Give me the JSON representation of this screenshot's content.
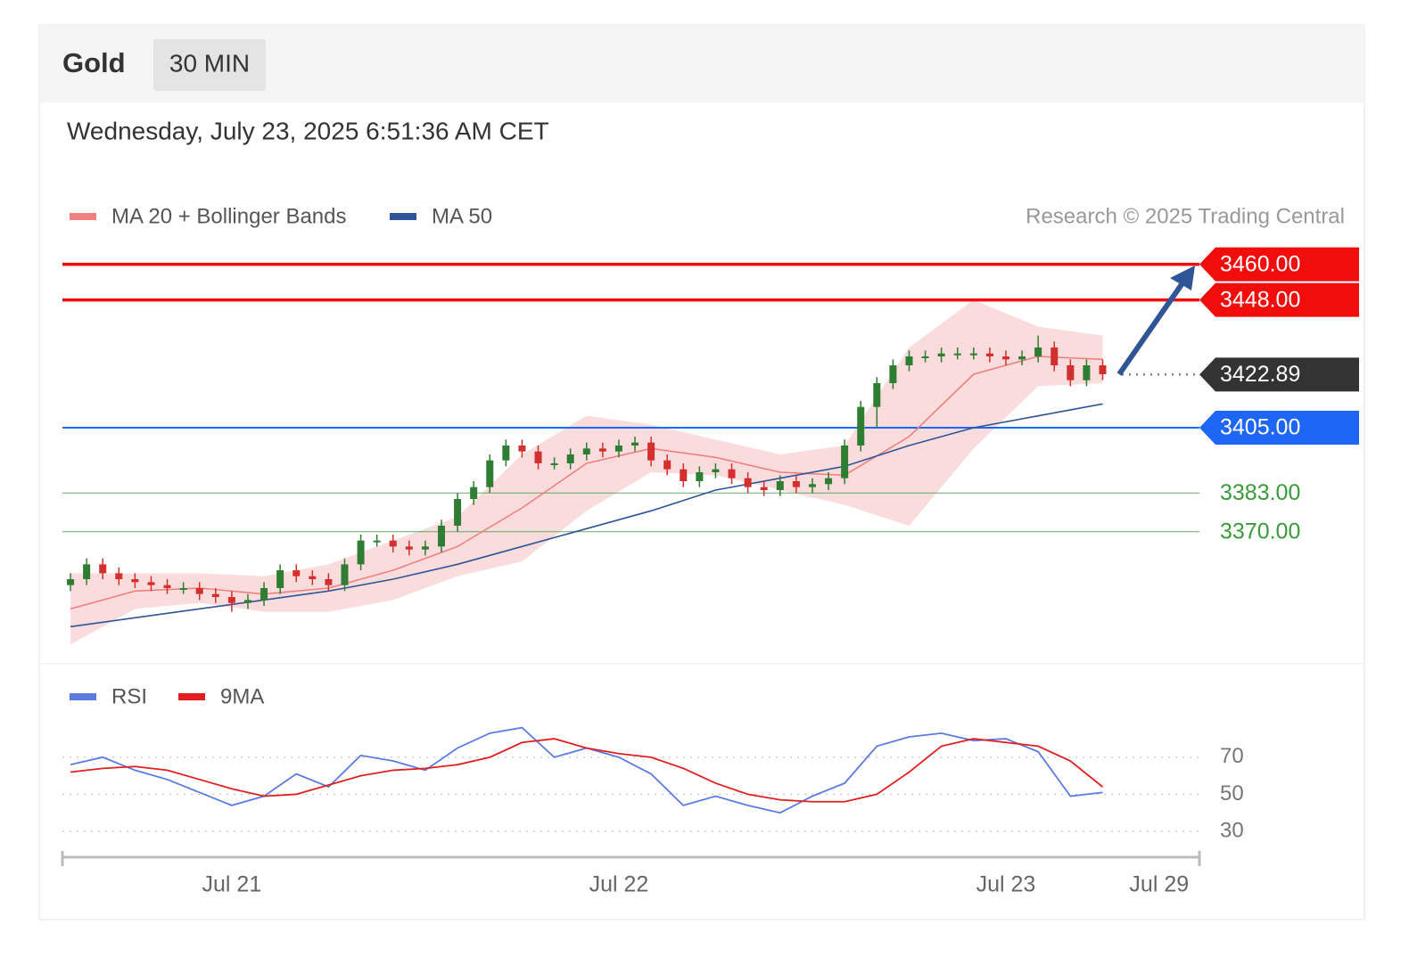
{
  "header": {
    "title": "Gold",
    "timeframe": "30 MIN",
    "timestamp": "Wednesday, July 23, 2025 6:51:36 AM CET"
  },
  "chart_data": [
    {
      "type": "candlestick",
      "credit": "Research © 2025 Trading Central",
      "xlim": [
        -1,
        140
      ],
      "ylim": [
        3327,
        3468
      ],
      "up_color": "#2e7d32",
      "down_color": "#d32f2f",
      "candles": {
        "x": [
          0,
          2,
          4,
          6,
          8,
          10,
          12,
          14,
          16,
          18,
          20,
          22,
          24,
          26,
          28,
          30,
          32,
          34,
          36,
          38,
          40,
          42,
          44,
          46,
          48,
          50,
          52,
          54,
          56,
          58,
          60,
          62,
          64,
          66,
          68,
          70,
          72,
          74,
          76,
          78,
          80,
          82,
          84,
          86,
          88,
          90,
          92,
          94,
          96,
          98,
          100,
          102,
          104,
          106,
          108,
          110,
          112,
          114,
          116,
          118,
          120,
          122,
          124,
          126,
          128
        ],
        "open": [
          3352,
          3354,
          3359,
          3356,
          3354,
          3353,
          3352,
          3351,
          3351,
          3349,
          3348,
          3346,
          3347,
          3351,
          3357,
          3355,
          3354,
          3352,
          3359,
          3367,
          3367,
          3365,
          3364,
          3365,
          3372,
          3381,
          3385,
          3394,
          3399,
          3397,
          3393,
          3393,
          3396,
          3398,
          3397,
          3399,
          3400,
          3394,
          3391,
          3387,
          3390,
          3391,
          3388,
          3385,
          3384,
          3387,
          3385,
          3386,
          3388,
          3399,
          3412,
          3420,
          3426,
          3429,
          3429,
          3430,
          3430,
          3430,
          3429,
          3428,
          3429,
          3432,
          3426,
          3421,
          3426
        ],
        "high": [
          3356,
          3361,
          3361,
          3358,
          3356,
          3355,
          3354,
          3353,
          3353,
          3351,
          3350,
          3349,
          3353,
          3359,
          3359,
          3357,
          3356,
          3361,
          3369,
          3369,
          3369,
          3367,
          3367,
          3374,
          3383,
          3387,
          3396,
          3401,
          3401,
          3399,
          3395,
          3398,
          3400,
          3400,
          3401,
          3402,
          3402,
          3396,
          3393,
          3392,
          3393,
          3393,
          3390,
          3387,
          3389,
          3389,
          3388,
          3390,
          3401,
          3414,
          3422,
          3428,
          3431,
          3431,
          3432,
          3432,
          3432,
          3432,
          3431,
          3431,
          3436,
          3434,
          3428,
          3428,
          3428
        ],
        "low": [
          3350,
          3352,
          3354,
          3352,
          3351,
          3350,
          3349,
          3349,
          3347,
          3346,
          3343,
          3344,
          3345,
          3349,
          3353,
          3352,
          3350,
          3350,
          3357,
          3365,
          3363,
          3362,
          3362,
          3363,
          3370,
          3379,
          3383,
          3392,
          3395,
          3391,
          3391,
          3391,
          3394,
          3395,
          3395,
          3397,
          3392,
          3389,
          3385,
          3385,
          3388,
          3386,
          3383,
          3382,
          3382,
          3383,
          3383,
          3384,
          3386,
          3397,
          3405,
          3418,
          3424,
          3427,
          3427,
          3428,
          3428,
          3427,
          3426,
          3426,
          3427,
          3424,
          3419,
          3419,
          3421
        ],
        "close": [
          3354,
          3359,
          3356,
          3354,
          3353,
          3352,
          3351,
          3351,
          3349,
          3348,
          3346,
          3347,
          3351,
          3357,
          3355,
          3354,
          3352,
          3359,
          3367,
          3367,
          3365,
          3364,
          3365,
          3372,
          3381,
          3385,
          3394,
          3399,
          3397,
          3393,
          3393,
          3396,
          3398,
          3397,
          3399,
          3400,
          3394,
          3391,
          3387,
          3390,
          3391,
          3388,
          3385,
          3384,
          3387,
          3385,
          3386,
          3388,
          3399,
          3412,
          3420,
          3426,
          3429,
          3429,
          3430,
          3430,
          3430,
          3429,
          3428,
          3429,
          3432,
          3426,
          3421,
          3426,
          3423
        ]
      },
      "line_x": [
        0,
        8,
        16,
        24,
        32,
        40,
        48,
        56,
        64,
        72,
        80,
        88,
        96,
        104,
        112,
        120,
        128
      ],
      "series": [
        {
          "name": "MA 20 + Bollinger Bands",
          "color": "#f08080",
          "values": [
            3344,
            3350,
            3351,
            3349,
            3351,
            3357,
            3365,
            3378,
            3393,
            3398,
            3395,
            3390,
            3389,
            3402,
            3423,
            3429,
            3428
          ],
          "upper": [
            3356,
            3356,
            3356,
            3355,
            3359,
            3367,
            3375,
            3396,
            3409,
            3406,
            3401,
            3396,
            3399,
            3432,
            3448,
            3439,
            3436
          ],
          "lower": [
            3332,
            3344,
            3346,
            3343,
            3343,
            3347,
            3355,
            3360,
            3377,
            3390,
            3389,
            3384,
            3379,
            3372,
            3398,
            3419,
            3420
          ]
        },
        {
          "name": "MA 50",
          "color": "#2f5597",
          "values": [
            3338,
            3341,
            3344,
            3347,
            3350,
            3354,
            3359,
            3365,
            3371,
            3377,
            3384,
            3388,
            3392,
            3399,
            3405,
            3409,
            3413
          ]
        }
      ],
      "levels": [
        {
          "value": 3460,
          "label": "3460.00",
          "color": "#f20d0d",
          "line": "solid",
          "style": "tag"
        },
        {
          "value": 3448,
          "label": "3448.00",
          "color": "#f20d0d",
          "line": "solid",
          "style": "tag"
        },
        {
          "value": 3422.89,
          "label": "3422.89",
          "color": "#333333",
          "line": "dotted",
          "style": "tag"
        },
        {
          "value": 3405,
          "label": "3405.00",
          "color": "#1e66f5",
          "line": "solid",
          "style": "tag"
        },
        {
          "value": 3383,
          "label": "3383.00",
          "color": "#3a9a3a",
          "line": "thin",
          "style": "text"
        },
        {
          "value": 3370,
          "label": "3370.00",
          "color": "#3a9a3a",
          "line": "thin",
          "style": "text"
        }
      ]
    },
    {
      "type": "line",
      "xlim": [
        -1,
        140
      ],
      "ylim": [
        17,
        94
      ],
      "yticks": [
        30,
        50,
        70
      ],
      "grid": true,
      "x": [
        0,
        4,
        8,
        12,
        16,
        20,
        24,
        28,
        32,
        36,
        40,
        44,
        48,
        52,
        56,
        60,
        64,
        68,
        72,
        76,
        80,
        84,
        88,
        92,
        96,
        100,
        104,
        108,
        112,
        116,
        120,
        124,
        128
      ],
      "xticks": [
        {
          "value": 20,
          "label": "Jul 21"
        },
        {
          "value": 68,
          "label": "Jul 22"
        },
        {
          "value": 116,
          "label": "Jul 23"
        },
        {
          "value": 135,
          "label": "Jul 29"
        }
      ],
      "series": [
        {
          "name": "RSI",
          "color": "#5b7be0",
          "values": [
            66,
            70,
            63,
            58,
            51,
            44,
            49,
            61,
            54,
            71,
            68,
            63,
            75,
            83,
            86,
            70,
            75,
            70,
            61,
            44,
            49,
            44,
            40,
            49,
            56,
            76,
            81,
            83,
            79,
            80,
            73,
            49,
            51
          ]
        },
        {
          "name": "9MA",
          "color": "#e02020",
          "values": [
            62,
            64,
            65,
            63,
            58,
            53,
            49,
            50,
            55,
            60,
            63,
            64,
            66,
            70,
            78,
            80,
            75,
            72,
            70,
            64,
            56,
            50,
            47,
            46,
            46,
            50,
            62,
            76,
            80,
            78,
            76,
            68,
            54
          ]
        }
      ]
    }
  ]
}
